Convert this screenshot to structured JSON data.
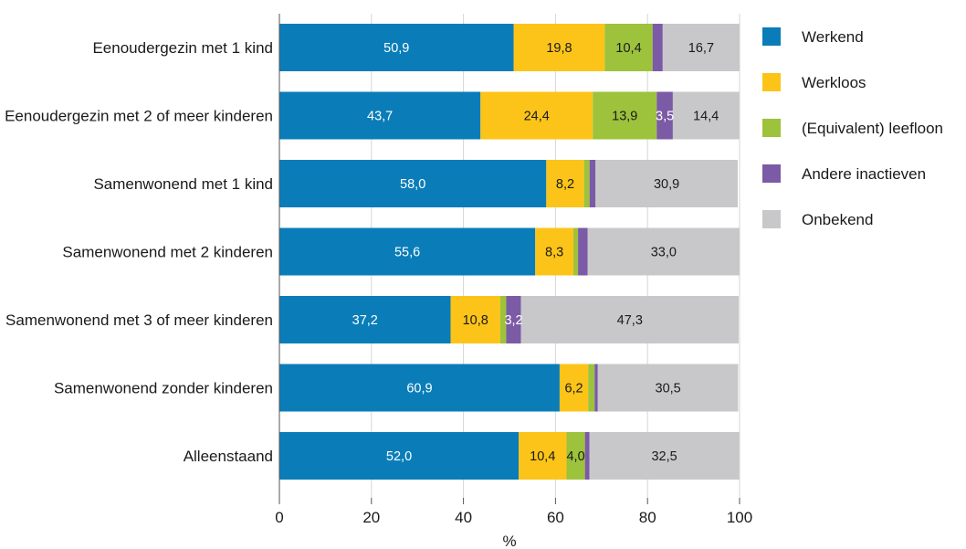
{
  "chart_data": {
    "type": "bar",
    "orientation": "horizontal",
    "stacked": true,
    "categories": [
      "Eenoudergezin met 1 kind",
      "Eenoudergezin met 2 of meer kinderen",
      "Samenwonend met 1 kind",
      "Samenwonend met 2 kinderen",
      "Samenwonend met 3 of meer kinderen",
      "Samenwonend zonder kinderen",
      "Alleenstaand"
    ],
    "series": [
      {
        "name": "Werkend",
        "color": "#0a7db8",
        "label_color": "#ffffff",
        "values": [
          50.9,
          43.7,
          58.0,
          55.6,
          37.2,
          60.9,
          52.0
        ],
        "labels": [
          "50,9",
          "43,7",
          "58,0",
          "55,6",
          "37,2",
          "60,9",
          "52,0"
        ]
      },
      {
        "name": "Werkloos",
        "color": "#fcc419",
        "label_color": "#1a1a1a",
        "values": [
          19.8,
          24.4,
          8.2,
          8.3,
          10.8,
          6.2,
          10.4
        ],
        "labels": [
          "19,8",
          "24,4",
          "8,2",
          "8,3",
          "10,8",
          "6,2",
          "10,4"
        ]
      },
      {
        "name": "(Equivalent) leefloon",
        "color": "#9dc23b",
        "label_color": "#1a1a1a",
        "values": [
          10.4,
          13.9,
          1.2,
          1.0,
          1.3,
          1.4,
          4.0
        ],
        "labels": [
          "10,4",
          "13,9",
          "",
          "",
          "",
          "",
          "4,0"
        ]
      },
      {
        "name": "Andere inactieven",
        "color": "#7b5aa6",
        "label_color": "#ffffff",
        "values": [
          2.2,
          3.5,
          1.3,
          2.1,
          3.2,
          0.7,
          1.0
        ],
        "labels": [
          "",
          "3,5",
          "",
          "",
          "3,2",
          "",
          ""
        ]
      },
      {
        "name": "Onbekend",
        "color": "#c8c8ca",
        "label_color": "#1a1a1a",
        "values": [
          16.7,
          14.4,
          30.9,
          33.0,
          47.3,
          30.5,
          32.5
        ],
        "labels": [
          "16,7",
          "14,4",
          "30,9",
          "33,0",
          "47,3",
          "30,5",
          "32,5"
        ]
      }
    ],
    "xlim": [
      0,
      100
    ],
    "xticks": [
      0,
      20,
      40,
      60,
      80,
      100
    ],
    "xlabel": "%",
    "title": "",
    "grid": "vertical",
    "legend_position": "right"
  }
}
